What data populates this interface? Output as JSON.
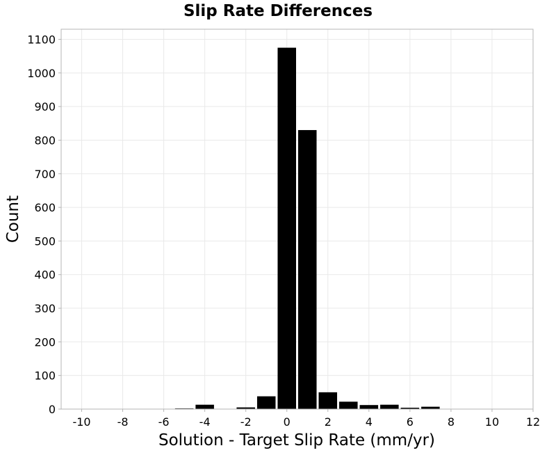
{
  "chart_data": {
    "type": "bar",
    "title": "Slip Rate Differences",
    "xlabel": "Solution - Target Slip Rate (mm/yr)",
    "ylabel": "Count",
    "xlim": [
      -11,
      12
    ],
    "ylim": [
      0,
      1130
    ],
    "xticks": [
      -10,
      -8,
      -6,
      -4,
      -2,
      0,
      2,
      4,
      6,
      8,
      10,
      12
    ],
    "xtick_labels": [
      "-10",
      "-8",
      "-6",
      "-4",
      "-2",
      "0",
      "2",
      "4",
      "6",
      "8",
      "10",
      "12"
    ],
    "yticks": [
      0,
      100,
      200,
      300,
      400,
      500,
      600,
      700,
      800,
      900,
      1000,
      1100
    ],
    "ytick_labels": [
      "0",
      "100",
      "200",
      "300",
      "400",
      "500",
      "600",
      "700",
      "800",
      "900",
      "1000",
      "1100"
    ],
    "grid": true,
    "bar_color": "#000000",
    "bin_width": 1,
    "bins": [
      {
        "x": -5,
        "value": 2
      },
      {
        "x": -4,
        "value": 13
      },
      {
        "x": -3,
        "value": 0
      },
      {
        "x": -2,
        "value": 5
      },
      {
        "x": -1,
        "value": 38
      },
      {
        "x": 0,
        "value": 1075
      },
      {
        "x": 1,
        "value": 830
      },
      {
        "x": 2,
        "value": 50
      },
      {
        "x": 3,
        "value": 22
      },
      {
        "x": 4,
        "value": 12
      },
      {
        "x": 5,
        "value": 13
      },
      {
        "x": 6,
        "value": 4
      },
      {
        "x": 7,
        "value": 7
      }
    ]
  }
}
